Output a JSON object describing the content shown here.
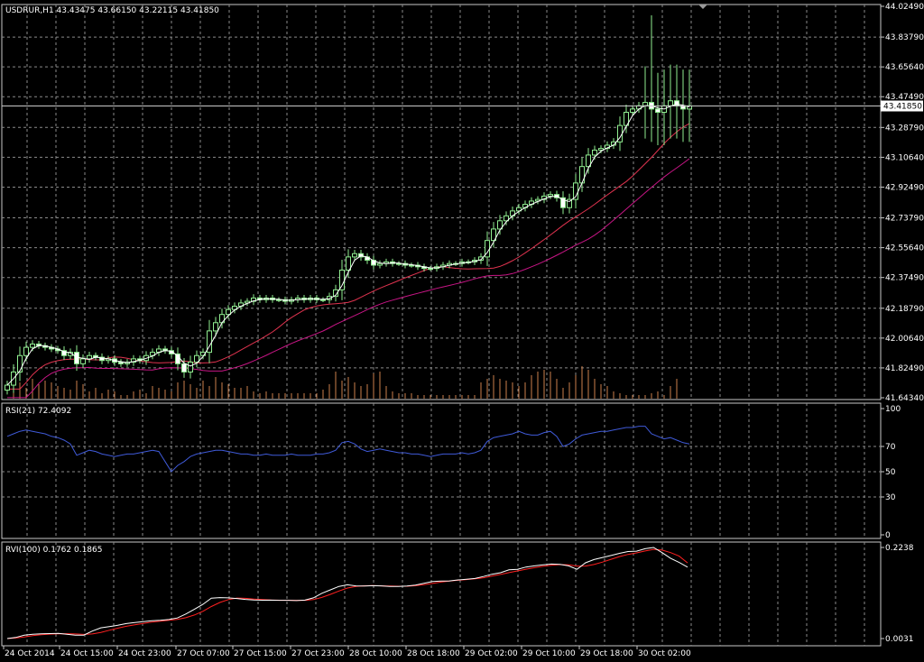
{
  "chart_data": [
    {
      "type": "candlestick",
      "title": "USDRUR,H1  43.43475 43.66150 43.22115 43.41850",
      "symbol": "USDRUR,H1",
      "last_price_label": "43.41850",
      "last_price": 43.4185,
      "ylim": [
        41.6434,
        44.0249
      ],
      "y_ticks": [
        44.0249,
        43.8379,
        43.6564,
        43.4749,
        43.2879,
        43.1064,
        42.9249,
        42.7379,
        42.5564,
        42.3749,
        42.1879,
        42.0064,
        41.8249,
        41.6434
      ],
      "y_tick_labels": [
        "44.02490",
        "43.83790",
        "43.65640",
        "43.47490",
        "43.28790",
        "43.10640",
        "42.92490",
        "42.73790",
        "42.55640",
        "42.37490",
        "42.18790",
        "42.00640",
        "41.82490",
        "41.64340"
      ],
      "x_tick_labels": [
        "24 Oct 2014",
        "24 Oct 15:00",
        "24 Oct 23:00",
        "27 Oct 07:00",
        "27 Oct 15:00",
        "27 Oct 23:00",
        "28 Oct 10:00",
        "28 Oct 18:00",
        "29 Oct 02:00",
        "29 Oct 10:00",
        "29 Oct 18:00",
        "30 Oct 02:00"
      ],
      "close": [
        41.72,
        41.8,
        41.9,
        41.95,
        41.97,
        41.96,
        41.95,
        41.94,
        41.93,
        41.9,
        41.92,
        41.85,
        41.88,
        41.9,
        41.89,
        41.87,
        41.88,
        41.86,
        41.85,
        41.86,
        41.88,
        41.87,
        41.9,
        41.92,
        41.94,
        41.93,
        41.91,
        41.85,
        41.8,
        41.86,
        41.9,
        41.92,
        42.05,
        42.1,
        42.15,
        42.18,
        42.2,
        42.22,
        42.23,
        42.25,
        42.24,
        42.25,
        42.24,
        42.24,
        42.23,
        42.24,
        42.25,
        42.24,
        42.25,
        42.24,
        42.24,
        42.26,
        42.3,
        42.42,
        42.5,
        42.52,
        42.5,
        42.48,
        42.45,
        42.46,
        42.47,
        42.46,
        42.46,
        42.45,
        42.45,
        42.44,
        42.43,
        42.43,
        42.44,
        42.45,
        42.46,
        42.46,
        42.47,
        42.47,
        42.48,
        42.5,
        42.6,
        42.67,
        42.72,
        42.75,
        42.78,
        42.8,
        42.82,
        42.84,
        42.85,
        42.87,
        42.88,
        42.86,
        42.8,
        42.85,
        42.95,
        43.05,
        43.12,
        43.15,
        43.16,
        43.18,
        43.2,
        43.3,
        43.38,
        43.4,
        43.42,
        43.44,
        43.4,
        43.38,
        43.42,
        43.45,
        43.42,
        43.4,
        43.42
      ],
      "sma_fast_values_line_white": "close smoothed over 3 bars",
      "sma_red_lines": "close smoothed over 14 and 21 bars",
      "rsi_panel": {
        "label": "RSI(21) 72.4092",
        "ylim": [
          0,
          100
        ],
        "y_tick_labels": [
          "100",
          "70",
          "50",
          "30",
          "0"
        ],
        "y_ticks": [
          100,
          70,
          50,
          30,
          0
        ],
        "values": [
          78,
          80,
          82,
          83,
          82,
          81,
          80,
          78,
          77,
          75,
          72,
          63,
          65,
          67,
          66,
          64,
          63,
          62,
          63,
          64,
          64,
          65,
          66,
          67,
          66,
          58,
          50,
          55,
          58,
          62,
          64,
          65,
          66,
          67,
          67,
          66,
          65,
          64,
          64,
          63,
          63,
          64,
          63,
          63,
          63,
          64,
          63,
          63,
          63,
          64,
          64,
          65,
          67,
          73,
          74,
          72,
          68,
          66,
          67,
          68,
          67,
          66,
          65,
          65,
          64,
          64,
          63,
          62,
          63,
          64,
          64,
          64,
          65,
          64,
          65,
          67,
          74,
          77,
          78,
          79,
          80,
          82,
          80,
          79,
          79,
          81,
          82,
          78,
          70,
          72,
          76,
          79,
          80,
          81,
          82,
          82,
          83,
          84,
          85,
          85,
          86,
          86,
          80,
          78,
          76,
          77,
          75,
          73,
          72
        ]
      },
      "rvi_panel": {
        "label": "RVI(100) 0.1762 0.1865",
        "ylim": [
          0.0031,
          0.2238
        ],
        "y_tick_labels": [
          "0.2238",
          "0.0031"
        ],
        "y_ticks": [
          0.2238,
          0.0031
        ],
        "rvi_values": [
          0.0031,
          0.0058,
          0.0111,
          0.0134,
          0.0145,
          0.0151,
          0.0158,
          0.0135,
          0.0114,
          0.0114,
          0.0212,
          0.0291,
          0.0319,
          0.0353,
          0.0394,
          0.0421,
          0.0441,
          0.0463,
          0.0475,
          0.0492,
          0.0529,
          0.0625,
          0.0739,
          0.0859,
          0.1011,
          0.1023,
          0.1017,
          0.1002,
          0.0979,
          0.0967,
          0.096,
          0.0962,
          0.0957,
          0.0958,
          0.0952,
          0.0961,
          0.1016,
          0.1127,
          0.1212,
          0.1293,
          0.1333,
          0.1308,
          0.1304,
          0.1311,
          0.1308,
          0.1291,
          0.1294,
          0.1303,
          0.1326,
          0.1369,
          0.1411,
          0.1423,
          0.1428,
          0.1452,
          0.1468,
          0.1486,
          0.1534,
          0.159,
          0.1626,
          0.1695,
          0.1709,
          0.1763,
          0.1793,
          0.1819,
          0.1837,
          0.1827,
          0.1793,
          0.1709,
          0.1866,
          0.1945,
          0.1995,
          0.2043,
          0.2097,
          0.214,
          0.2148,
          0.2208,
          0.2238,
          0.2113,
          0.1974,
          0.1875,
          0.1762
        ],
        "signal_values": [
          0.0031,
          0.0044,
          0.007,
          0.0101,
          0.0124,
          0.0137,
          0.0146,
          0.0148,
          0.0142,
          0.0131,
          0.0143,
          0.0179,
          0.0232,
          0.0283,
          0.0328,
          0.0364,
          0.0399,
          0.0428,
          0.0452,
          0.0472,
          0.0494,
          0.0535,
          0.0601,
          0.0692,
          0.0807,
          0.0906,
          0.0974,
          0.1012,
          0.1005,
          0.0989,
          0.0976,
          0.0965,
          0.096,
          0.0959,
          0.0957,
          0.0958,
          0.0974,
          0.1027,
          0.1101,
          0.1182,
          0.1255,
          0.1294,
          0.1309,
          0.1313,
          0.1308,
          0.1302,
          0.1299,
          0.1299,
          0.1311,
          0.1335,
          0.1366,
          0.1398,
          0.1422,
          0.1442,
          0.146,
          0.1477,
          0.1503,
          0.1545,
          0.1584,
          0.1628,
          0.1669,
          0.1712,
          0.1749,
          0.1781,
          0.1808,
          0.1822,
          0.1817,
          0.1785,
          0.1787,
          0.1824,
          0.1884,
          0.1951,
          0.2018,
          0.207,
          0.2107,
          0.2152,
          0.2193,
          0.2175,
          0.2113,
          0.2028,
          0.1865
        ]
      },
      "volume_values": [
        0.0,
        0.35,
        0.45,
        0.3,
        0.55,
        0.4,
        0.5,
        0.45,
        0.35,
        0.3,
        0.25,
        0.5,
        0.4,
        0.2,
        0.3,
        0.15,
        0.25,
        0.2,
        0.1,
        0.1,
        0.2,
        0.25,
        0.15,
        0.35,
        0.3,
        0.25,
        0.2,
        0.45,
        0.5,
        0.4,
        0.3,
        0.5,
        0.35,
        0.6,
        0.45,
        0.4,
        0.3,
        0.3,
        0.35,
        0.2,
        0.15,
        0.2,
        0.15,
        0.15,
        0.15,
        0.15,
        0.15,
        0.15,
        0.15,
        0.15,
        0.25,
        0.4,
        0.75,
        0.5,
        0.6,
        0.45,
        0.35,
        0.4,
        0.7,
        0.75,
        0.35,
        0.2,
        0.15,
        0.15,
        0.15,
        0.1,
        0.1,
        0.1,
        0.1,
        0.1,
        0.1,
        0.1,
        0.1,
        0.1,
        0.1,
        0.45,
        0.55,
        0.65,
        0.55,
        0.5,
        0.45,
        0.35,
        0.45,
        0.65,
        0.75,
        0.8,
        0.75,
        0.55,
        0.3,
        0.45,
        0.65,
        0.9,
        0.8,
        0.55,
        0.4,
        0.35,
        0.2,
        0.15,
        0.1,
        0.1,
        0.1,
        0.1,
        0.15,
        0.2,
        0.1,
        0.35,
        0.55
      ],
      "colors": {
        "background": "#000000",
        "bull_candle": "#90ee90",
        "bear_candle": "#ffffff",
        "fast_ma": "#ffffff",
        "ma_mid": "#e0334f",
        "ma_slow": "#c71585",
        "volume": "#cd7f4c",
        "rsi_line": "#3f5ad8",
        "rvi_line": "#ffffff",
        "signal_line": "#ff2020",
        "grid": "#8a8a8a"
      }
    }
  ]
}
